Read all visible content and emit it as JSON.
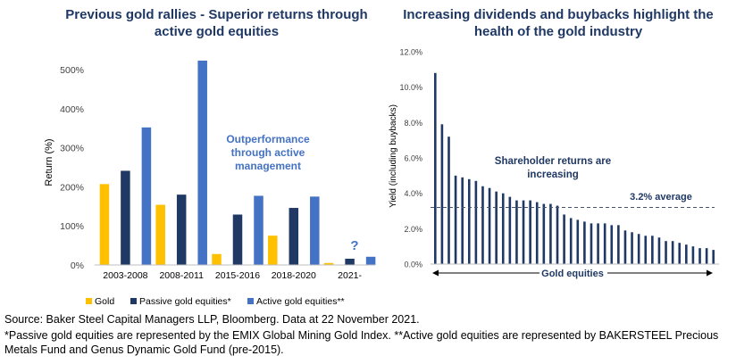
{
  "left_title": "Previous gold rallies - Superior returns through active gold equities",
  "right_title": "Increasing dividends and buybacks highlight the health of the gold industry",
  "colors": {
    "title": "#1f3864",
    "gold": "#ffc000",
    "passive": "#1f3864",
    "active": "#4472c4",
    "annotation": "#4472c4",
    "yield_bar": "#1f3864",
    "average_line": "#44546a",
    "axis": "#bfbfbf",
    "tick_text": "#404040"
  },
  "chart_data": [
    {
      "type": "bar",
      "title": "Previous gold rallies - Superior returns through active gold equities",
      "ylabel": "Return (%)",
      "xlabel": "",
      "ylim": [
        0,
        500
      ],
      "yticks": [
        0,
        100,
        200,
        300,
        400,
        500
      ],
      "ytick_labels": [
        "0%",
        "100%",
        "200%",
        "300%",
        "400%",
        "500%"
      ],
      "categories": [
        "2003-2008",
        "2008-2011",
        "2015-2016",
        "2018-2020",
        "2021-"
      ],
      "series": [
        {
          "name": "Gold",
          "color": "#ffc000",
          "values": [
            207,
            154,
            28,
            75,
            5
          ]
        },
        {
          "name": "Passive gold equities*",
          "color": "#1f3864",
          "values": [
            241,
            180,
            129,
            146,
            16
          ]
        },
        {
          "name": "Active gold equities**",
          "color": "#4472c4",
          "values": [
            352,
            523,
            177,
            175,
            21
          ]
        }
      ],
      "legend": "bottom",
      "grid": false,
      "annotations": [
        "Outperformance through active management",
        "?"
      ]
    },
    {
      "type": "bar",
      "title": "Increasing dividends and buybacks highlight the health of the gold industry",
      "ylabel": "Yield (including buybacks)",
      "xlabel": "Gold equities",
      "ylim": [
        0,
        12
      ],
      "yticks": [
        0,
        2,
        4,
        6,
        8,
        10,
        12
      ],
      "ytick_labels": [
        "0.0%",
        "2.0%",
        "4.0%",
        "6.0%",
        "8.0%",
        "10.0%",
        "12.0%"
      ],
      "values": [
        10.8,
        7.9,
        7.2,
        5.0,
        4.9,
        4.8,
        4.7,
        4.4,
        4.3,
        4.1,
        4.0,
        3.8,
        3.6,
        3.6,
        3.6,
        3.5,
        3.4,
        3.4,
        3.3,
        2.8,
        2.6,
        2.5,
        2.4,
        2.3,
        2.3,
        2.3,
        2.2,
        2.2,
        1.9,
        1.8,
        1.7,
        1.6,
        1.6,
        1.5,
        1.3,
        1.3,
        1.2,
        1.1,
        1.0,
        0.9,
        0.9,
        0.8
      ],
      "average": 3.2,
      "average_label": "3.2% average",
      "grid": false,
      "annotations": [
        "Shareholder returns are increasing"
      ]
    }
  ],
  "source_note": "Source: Baker Steel Capital Managers LLP, Bloomberg. Data at 22 November 2021.",
  "footnote": "*Passive gold equities are represented by the EMIX Global Mining Gold Index. **Active gold equities are represented by BAKERSTEEL Precious Metals Fund and Genus Dynamic Gold Fund (pre-2015)."
}
